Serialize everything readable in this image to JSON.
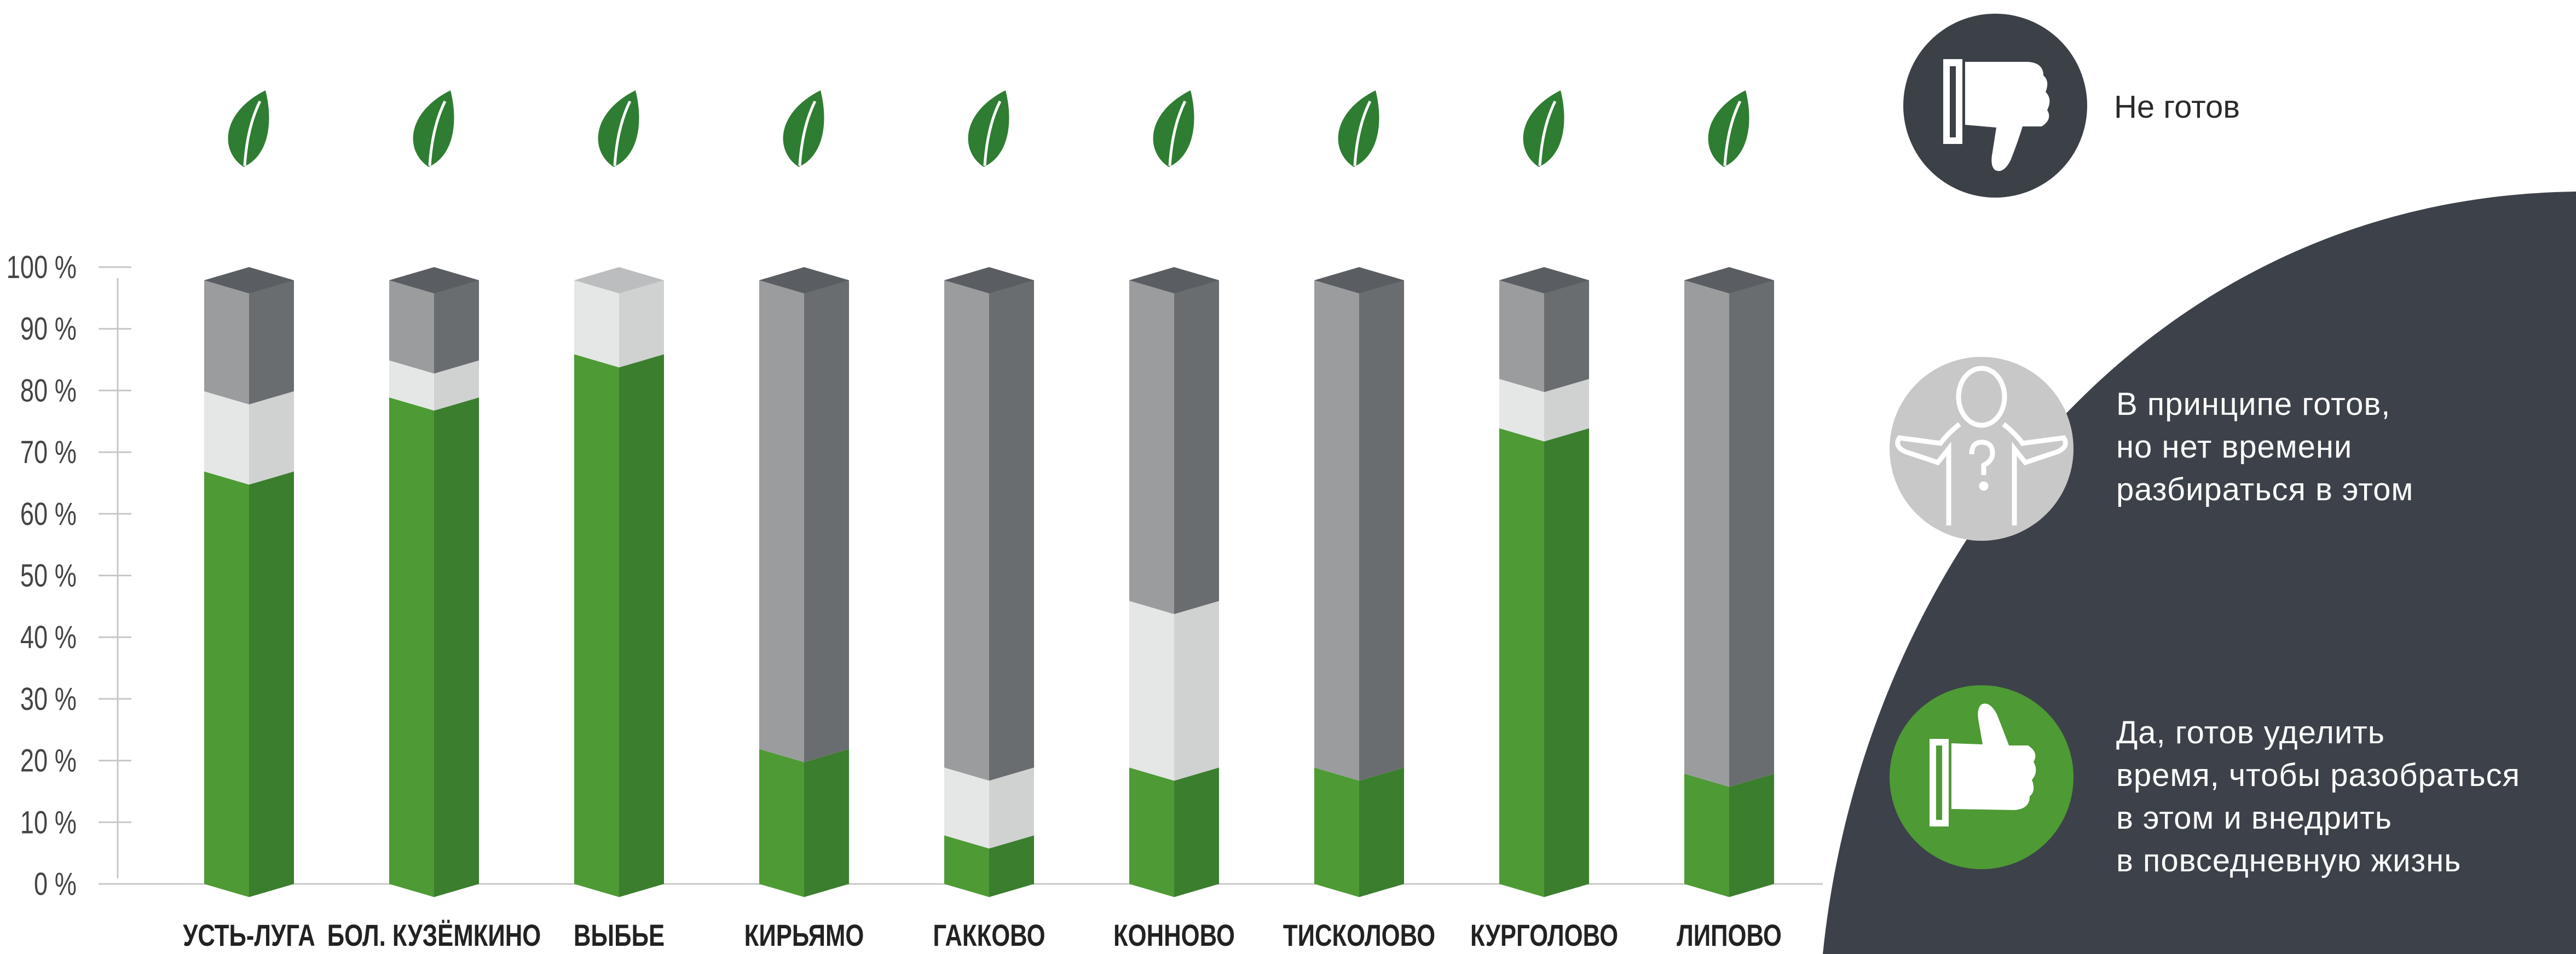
{
  "chart_data": {
    "type": "bar",
    "stacked": true,
    "categories": [
      "УСТЬ-ЛУГА",
      "БОЛ. КУЗЁМКИНО",
      "ВЫБЬЕ",
      "КИРЬЯМО",
      "ГАККОВО",
      "КОННОВО",
      "ТИСКОЛОВО",
      "КУРГОЛОВО",
      "ЛИПОВО"
    ],
    "series": [
      {
        "name": "Да, готов уделить время, чтобы разобраться в этом и внедрить в повседневную жизнь",
        "values": [
          69,
          81,
          88,
          24,
          10,
          21,
          21,
          76,
          20
        ],
        "colors": [
          "#4e9a35",
          "#3b7e2e"
        ]
      },
      {
        "name": "В принципе готов, но нет времени разбираться в этом",
        "values": [
          13,
          6,
          12,
          0,
          11,
          27,
          0,
          8,
          0
        ],
        "colors": [
          "#e4e7e6",
          "#cfd2d1"
        ]
      },
      {
        "name": "Не готов",
        "values": [
          18,
          13,
          0,
          76,
          79,
          52,
          79,
          16,
          80
        ],
        "colors": [
          "#9a9c9e",
          "#6a6d70"
        ]
      }
    ],
    "yticks": [
      "0 %",
      "10 %",
      "20 %",
      "30 %",
      "40 %",
      "50 %",
      "60 %",
      "70 %",
      "80 %",
      "90 %",
      "100 %"
    ],
    "ylim": [
      0,
      100
    ],
    "legend_position": "right"
  },
  "legend": [
    {
      "id": "not-ready",
      "lines": [
        "Не готов"
      ],
      "icon": "thumbs-down-icon",
      "icon_bg": "#3c4148"
    },
    {
      "id": "no-time",
      "lines": [
        "В принципе готов,",
        "но нет времени",
        "разбираться в этом"
      ],
      "icon": "confused-person-icon",
      "icon_bg": "#c8c8c8"
    },
    {
      "id": "ready",
      "lines": [
        "Да, готов уделить",
        "время, чтобы разобраться",
        "в этом и внедрить",
        "в повседневную жизнь"
      ],
      "icon": "thumbs-up-icon",
      "icon_bg": "#4e9a35"
    }
  ],
  "colors": {
    "panel": "#3d424a",
    "leaf": "#2e7d32",
    "axis": "#c8c8c8",
    "tick_text": "#444444",
    "label_text": "#222222"
  }
}
